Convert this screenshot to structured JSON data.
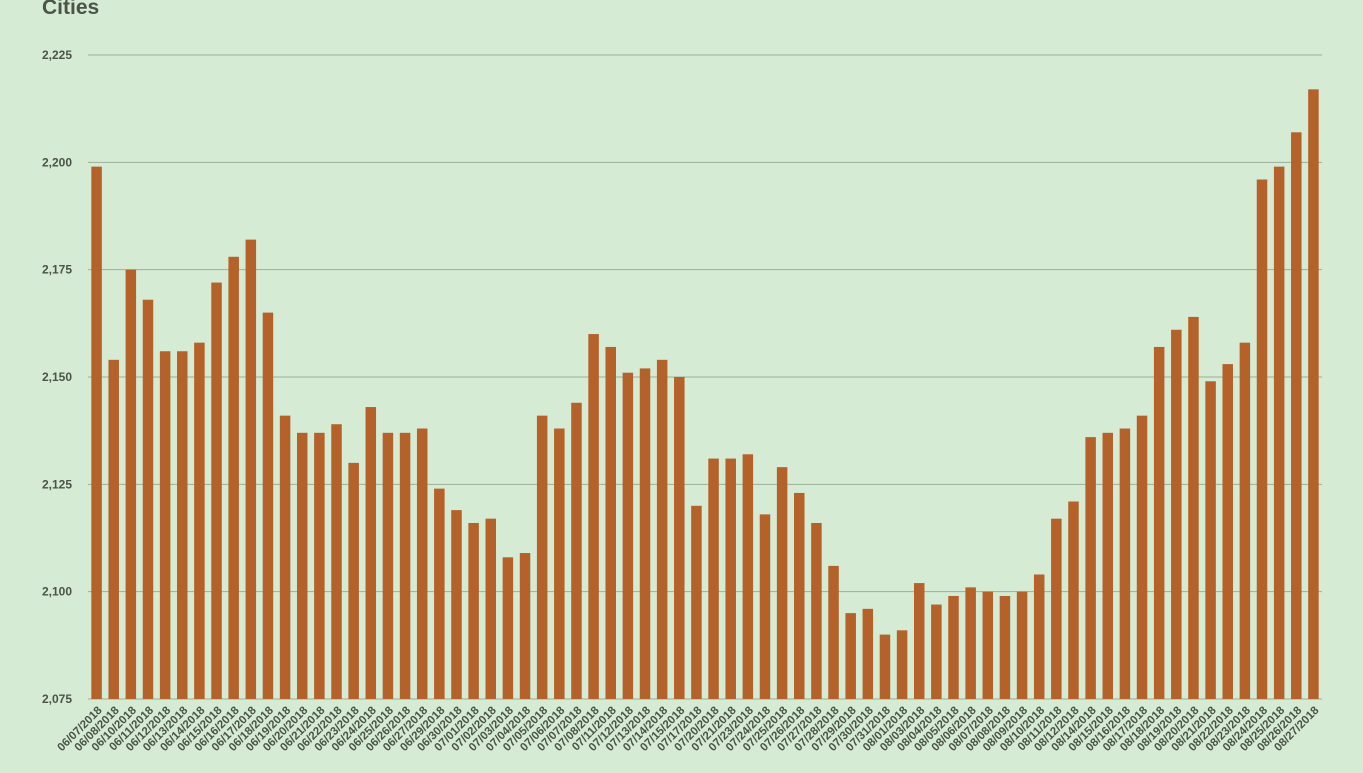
{
  "chart_data": {
    "type": "bar",
    "title": "Cities",
    "xlabel": "",
    "ylabel": "",
    "ylim": [
      2075,
      2225
    ],
    "yticks": [
      "2,075",
      "2,100",
      "2,125",
      "2,150",
      "2,175",
      "2,200",
      "2,225"
    ],
    "grid": true,
    "bar_color": "#b5612a",
    "categories": [
      "06/07/2018",
      "06/08/2018",
      "06/10/2018",
      "06/11/2018",
      "06/12/2018",
      "06/13/2018",
      "06/14/2018",
      "06/15/2018",
      "06/16/2018",
      "06/17/2018",
      "06/18/2018",
      "06/19/2018",
      "06/20/2018",
      "06/21/2018",
      "06/22/2018",
      "06/23/2018",
      "06/24/2018",
      "06/25/2018",
      "06/26/2018",
      "06/27/2018",
      "06/29/2018",
      "06/30/2018",
      "07/01/2018",
      "07/02/2018",
      "07/03/2018",
      "07/04/2018",
      "07/05/2018",
      "07/06/2018",
      "07/07/2018",
      "07/08/2018",
      "07/11/2018",
      "07/12/2018",
      "07/13/2018",
      "07/14/2018",
      "07/15/2018",
      "07/17/2018",
      "07/20/2018",
      "07/21/2018",
      "07/23/2018",
      "07/24/2018",
      "07/25/2018",
      "07/26/2018",
      "07/27/2018",
      "07/28/2018",
      "07/29/2018",
      "07/30/2018",
      "07/31/2018",
      "08/01/2018",
      "08/03/2018",
      "08/04/2018",
      "08/05/2018",
      "08/06/2018",
      "08/07/2018",
      "08/08/2018",
      "08/09/2018",
      "08/10/2018",
      "08/11/2018",
      "08/12/2018",
      "08/14/2018",
      "08/15/2018",
      "08/16/2018",
      "08/17/2018",
      "08/18/2018",
      "08/19/2018",
      "08/20/2018",
      "08/21/2018",
      "08/22/2018",
      "08/23/2018",
      "08/24/2018",
      "08/25/2018",
      "08/26/2018",
      "08/27/2018"
    ],
    "values": [
      2199,
      2154,
      2175,
      2168,
      2156,
      2156,
      2158,
      2172,
      2178,
      2182,
      2165,
      2141,
      2137,
      2137,
      2139,
      2130,
      2143,
      2137,
      2137,
      2138,
      2124,
      2119,
      2116,
      2117,
      2108,
      2109,
      2141,
      2138,
      2144,
      2160,
      2157,
      2151,
      2152,
      2154,
      2150,
      2120,
      2131,
      2131,
      2132,
      2118,
      2129,
      2123,
      2116,
      2106,
      2095,
      2096,
      2090,
      2091,
      2102,
      2097,
      2099,
      2101,
      2100,
      2099,
      2100,
      2104,
      2117,
      2121,
      2136,
      2137,
      2138,
      2141,
      2157,
      2161,
      2164,
      2149,
      2153,
      2158,
      2196,
      2199,
      2207,
      2217
    ]
  }
}
